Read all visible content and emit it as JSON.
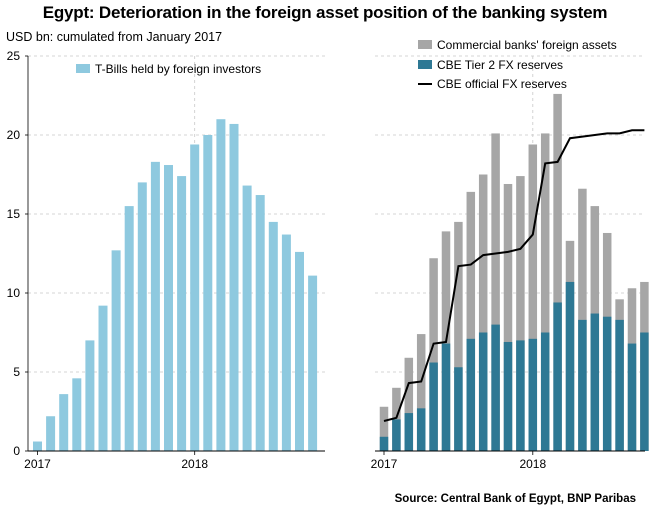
{
  "title": "Egypt: Deterioration in the foreign asset position of the banking system",
  "unit_label": "USD bn: cumulated from January 2017",
  "source": "Source: Central Bank of Egypt, BNP Paribas",
  "colors": {
    "tbills": "#8ec9df",
    "commercial": "#a6a6a6",
    "tier2": "#2e7894",
    "official": "#000000",
    "grid": "#c8c8c8"
  },
  "chart_data": [
    {
      "type": "bar",
      "x": [
        "2017-01",
        "2017-02",
        "2017-03",
        "2017-04",
        "2017-05",
        "2017-06",
        "2017-07",
        "2017-08",
        "2017-09",
        "2017-10",
        "2017-11",
        "2017-12",
        "2018-01",
        "2018-02",
        "2018-03",
        "2018-04",
        "2018-05",
        "2018-06",
        "2018-07",
        "2018-08",
        "2018-09",
        "2018-10"
      ],
      "x_tick_labels": [
        "2017",
        "2018"
      ],
      "ylim": [
        0,
        25
      ],
      "y_ticks": [
        0,
        5,
        10,
        15,
        20,
        25
      ],
      "grid": true,
      "legend_position": "top-left",
      "series": [
        {
          "name": "T-Bills held by foreign investors",
          "color": "#8ec9df",
          "values": [
            0.6,
            2.2,
            3.6,
            4.6,
            7.0,
            9.2,
            12.7,
            15.5,
            17.0,
            18.3,
            18.1,
            17.4,
            19.4,
            20.0,
            21.0,
            20.7,
            16.8,
            16.2,
            14.5,
            13.7,
            12.6,
            11.1
          ]
        }
      ]
    },
    {
      "type": "bar",
      "x": [
        "2017-01",
        "2017-02",
        "2017-03",
        "2017-04",
        "2017-05",
        "2017-06",
        "2017-07",
        "2017-08",
        "2017-09",
        "2017-10",
        "2017-11",
        "2017-12",
        "2018-01",
        "2018-02",
        "2018-03",
        "2018-04",
        "2018-05",
        "2018-06",
        "2018-07",
        "2018-08",
        "2018-09",
        "2018-10"
      ],
      "x_tick_labels": [
        "2017",
        "2018"
      ],
      "ylim": [
        0,
        25
      ],
      "grid": true,
      "legend_position": "top-right",
      "series": [
        {
          "name": "Commercial banks' foreign assets",
          "type": "bar",
          "color": "#a6a6a6",
          "values": [
            2.8,
            4.0,
            5.9,
            7.4,
            12.2,
            13.9,
            14.5,
            16.4,
            17.5,
            20.1,
            16.9,
            17.4,
            19.4,
            20.1,
            22.6,
            13.3,
            16.6,
            15.5,
            13.8,
            9.6,
            10.3,
            10.7
          ]
        },
        {
          "name": "CBE Tier 2 FX reserves",
          "type": "bar",
          "color": "#2e7894",
          "values": [
            0.9,
            2.0,
            2.4,
            2.7,
            5.6,
            6.8,
            5.3,
            7.1,
            7.5,
            8.0,
            6.9,
            7.0,
            7.1,
            7.5,
            9.4,
            10.7,
            8.3,
            8.7,
            8.5,
            8.3,
            6.8,
            7.5
          ]
        },
        {
          "name": "CBE official FX reserves",
          "type": "line",
          "color": "#000000",
          "values": [
            1.9,
            2.1,
            4.3,
            4.4,
            6.8,
            6.9,
            11.7,
            11.8,
            12.4,
            12.5,
            12.6,
            12.8,
            13.7,
            18.2,
            18.3,
            19.8,
            19.9,
            20.0,
            20.1,
            20.1,
            20.3,
            20.3
          ]
        }
      ]
    }
  ]
}
